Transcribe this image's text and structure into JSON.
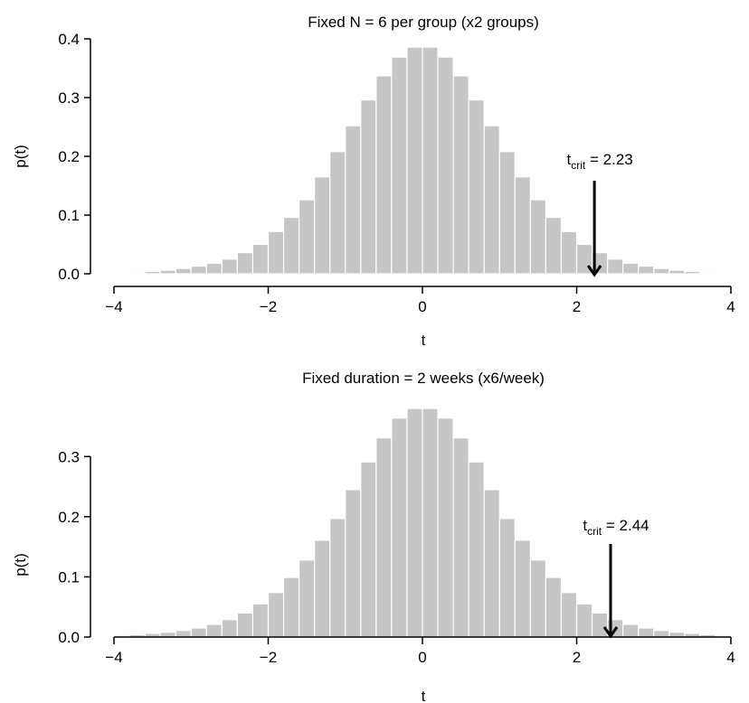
{
  "chart_data": [
    {
      "type": "bar",
      "title": "Fixed N = 6 per group (x2 groups)",
      "xlabel": "t",
      "ylabel": "p(t)",
      "xlim": [
        -4,
        4
      ],
      "ylim": [
        0,
        0.4
      ],
      "xticks": [
        "−4",
        "−2",
        "0",
        "2",
        "4"
      ],
      "yticks": [
        "0.0",
        "0.1",
        "0.2",
        "0.3",
        "0.4"
      ],
      "bin_width": 0.2,
      "x": [
        -3.9,
        -3.7,
        -3.5,
        -3.3,
        -3.1,
        -2.9,
        -2.7,
        -2.5,
        -2.3,
        -2.1,
        -1.9,
        -1.7,
        -1.5,
        -1.3,
        -1.1,
        -0.9,
        -0.7,
        -0.5,
        -0.3,
        -0.1,
        0.1,
        0.3,
        0.5,
        0.7,
        0.9,
        1.1,
        1.3,
        1.5,
        1.7,
        1.9,
        2.1,
        2.3,
        2.5,
        2.7,
        2.9,
        3.1,
        3.3,
        3.5,
        3.7,
        3.9
      ],
      "values": [
        0.001,
        0.002,
        0.004,
        0.006,
        0.009,
        0.013,
        0.018,
        0.025,
        0.036,
        0.05,
        0.072,
        0.096,
        0.126,
        0.165,
        0.208,
        0.252,
        0.296,
        0.337,
        0.369,
        0.386,
        0.386,
        0.369,
        0.337,
        0.296,
        0.252,
        0.208,
        0.165,
        0.126,
        0.096,
        0.072,
        0.05,
        0.036,
        0.025,
        0.018,
        0.013,
        0.009,
        0.006,
        0.004,
        0.002,
        0.001
      ],
      "annotation": {
        "label_main": "t",
        "label_sub": "crit",
        "label_value": " = 2.23",
        "x": 2.23
      }
    },
    {
      "type": "bar",
      "title": "Fixed duration = 2 weeks (x6/week)",
      "xlabel": "t",
      "ylabel": "p(t)",
      "xlim": [
        -4,
        4
      ],
      "ylim": [
        0,
        0.38
      ],
      "xticks": [
        "−4",
        "−2",
        "0",
        "2",
        "4"
      ],
      "yticks": [
        "0.0",
        "0.1",
        "0.2",
        "0.3"
      ],
      "bin_width": 0.2,
      "x": [
        -3.9,
        -3.7,
        -3.5,
        -3.3,
        -3.1,
        -2.9,
        -2.7,
        -2.5,
        -2.3,
        -2.1,
        -1.9,
        -1.7,
        -1.5,
        -1.3,
        -1.1,
        -0.9,
        -0.7,
        -0.5,
        -0.3,
        -0.1,
        0.1,
        0.3,
        0.5,
        0.7,
        0.9,
        1.1,
        1.3,
        1.5,
        1.7,
        1.9,
        2.1,
        2.3,
        2.5,
        2.7,
        2.9,
        3.1,
        3.3,
        3.5,
        3.7,
        3.9
      ],
      "values": [
        0.002,
        0.004,
        0.006,
        0.008,
        0.011,
        0.015,
        0.021,
        0.029,
        0.04,
        0.055,
        0.074,
        0.099,
        0.128,
        0.161,
        0.197,
        0.245,
        0.291,
        0.331,
        0.364,
        0.38,
        0.38,
        0.364,
        0.331,
        0.291,
        0.245,
        0.197,
        0.161,
        0.128,
        0.099,
        0.074,
        0.055,
        0.04,
        0.029,
        0.021,
        0.015,
        0.011,
        0.008,
        0.006,
        0.004,
        0.002
      ],
      "annotation": {
        "label_main": "t",
        "label_sub": "crit",
        "label_value": " = 2.44",
        "x": 2.44
      }
    }
  ]
}
